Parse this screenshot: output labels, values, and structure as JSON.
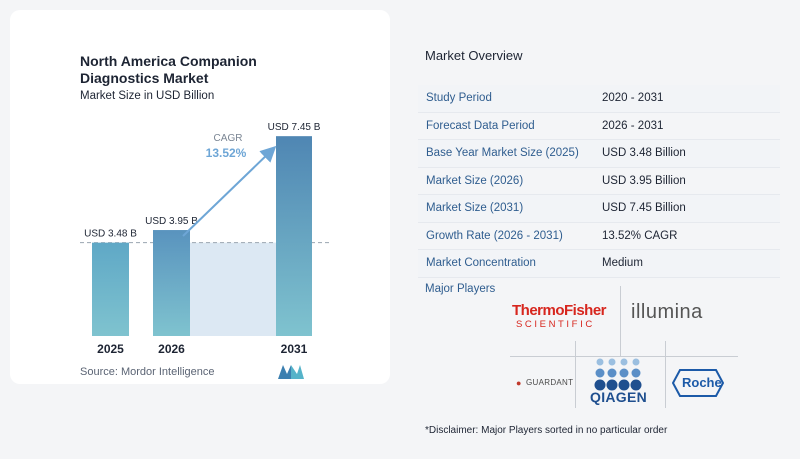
{
  "chart_data": {
    "type": "bar",
    "title": "North America Companion Diagnostics Market",
    "subtitle": "Market Size in USD Billion",
    "categories": [
      "2025",
      "2026",
      "2031"
    ],
    "values": [
      3.48,
      3.95,
      7.45
    ],
    "value_labels": [
      "USD 3.48 B",
      "USD 3.95 B",
      "USD 7.45 B"
    ],
    "ylim": [
      0,
      8.5
    ],
    "cagr_label": "CAGR",
    "cagr_value": "13.52%",
    "colors": {
      "bar_light": "#5fa8c6",
      "bar_mid": "#5993be",
      "bar_dark": "#4f86b3",
      "band": "#dce8f3",
      "arrow": "#6ea6d6"
    },
    "source": "Source:  Mordor Intelligence"
  },
  "overview": {
    "title": "Market Overview",
    "rows": [
      {
        "label": "Study Period",
        "value": "2020 - 2031"
      },
      {
        "label": "Forecast Data Period",
        "value": "2026 - 2031"
      },
      {
        "label": "Base Year Market Size (2025)",
        "value": "USD 3.48 Billion"
      },
      {
        "label": "Market Size (2026)",
        "value": "USD 3.95 Billion"
      },
      {
        "label": "Market Size (2031)",
        "value": "USD 7.45 Billion"
      },
      {
        "label": "Growth Rate (2026 - 2031)",
        "value": "13.52% CAGR"
      },
      {
        "label": "Market Concentration",
        "value": "Medium"
      }
    ],
    "players_title": "Major Players",
    "players": {
      "thermo_top": "ThermoFisher",
      "thermo_bottom": "SCIENTIFIC",
      "illumina": "illumina",
      "guardant": "GUARDANT",
      "qiagen": "QIAGEN",
      "roche": "Roche"
    },
    "disclaimer": "*Disclaimer: Major Players sorted in no particular order"
  }
}
